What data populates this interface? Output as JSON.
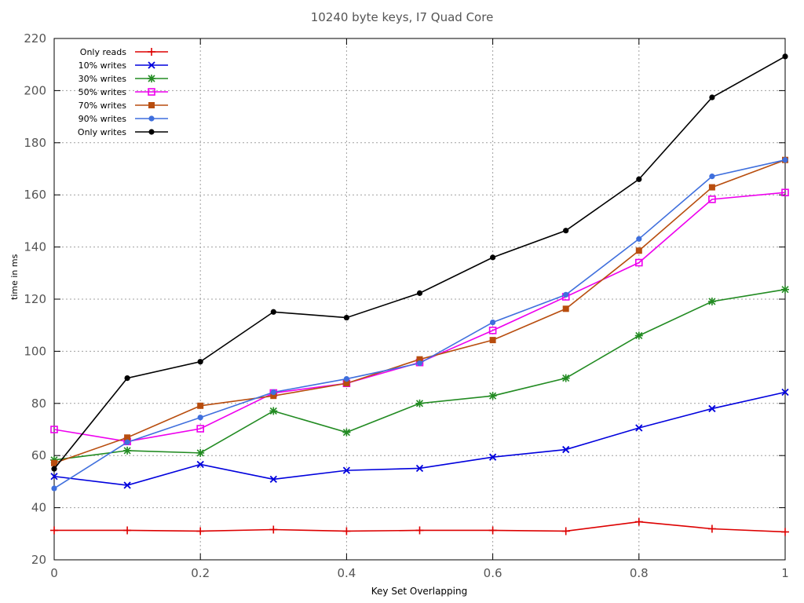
{
  "chart_data": {
    "type": "line",
    "title": "10240 byte keys, I7 Quad Core",
    "xlabel": "Key Set Overlapping",
    "ylabel": "time in ms",
    "xlim": [
      0,
      1
    ],
    "ylim": [
      20,
      220
    ],
    "x_ticks": [
      "0",
      "0.2",
      "0.4",
      "0.6",
      "0.8",
      "1"
    ],
    "y_ticks": [
      "20",
      "40",
      "60",
      "80",
      "100",
      "120",
      "140",
      "160",
      "180",
      "200",
      "220"
    ],
    "grid": true,
    "legend_position": "top-left",
    "x": [
      0,
      0.1,
      0.2,
      0.3,
      0.4,
      0.5,
      0.6,
      0.7,
      0.8,
      0.9,
      1.0
    ],
    "series": [
      {
        "name": "Only reads",
        "color": "#dd0000",
        "marker": "plus",
        "values": [
          31.3,
          31.3,
          31.0,
          31.6,
          31.0,
          31.3,
          31.3,
          31.0,
          34.6,
          31.9,
          30.7
        ]
      },
      {
        "name": "10% writes",
        "color": "#0000dd",
        "marker": "x",
        "values": [
          52.0,
          48.6,
          56.6,
          50.9,
          54.3,
          55.1,
          59.4,
          62.3,
          70.6,
          78.0,
          84.3
        ]
      },
      {
        "name": "30% writes",
        "color": "#228b22",
        "marker": "star",
        "values": [
          58.3,
          61.9,
          61.0,
          77.1,
          68.9,
          80.0,
          82.9,
          89.7,
          106.0,
          119.1,
          123.7
        ]
      },
      {
        "name": "50% writes",
        "color": "#ee00ee",
        "marker": "square-open",
        "values": [
          70.0,
          65.4,
          70.3,
          84.0,
          87.7,
          95.7,
          108.0,
          120.9,
          134.0,
          158.3,
          160.9
        ]
      },
      {
        "name": "70% writes",
        "color": "#b84d0e",
        "marker": "square",
        "values": [
          57.1,
          66.9,
          79.1,
          82.9,
          87.7,
          96.9,
          104.3,
          116.3,
          138.6,
          162.9,
          173.4
        ]
      },
      {
        "name": "90% writes",
        "color": "#3f6fdd",
        "marker": "dot",
        "values": [
          47.4,
          65.1,
          74.6,
          84.3,
          89.4,
          95.4,
          111.1,
          121.7,
          143.1,
          167.1,
          173.4
        ]
      },
      {
        "name": "Only writes",
        "color": "#000000",
        "marker": "dot",
        "values": [
          54.9,
          89.7,
          96.0,
          115.1,
          112.9,
          122.3,
          136.0,
          146.3,
          166.0,
          197.4,
          213.1
        ]
      }
    ]
  }
}
